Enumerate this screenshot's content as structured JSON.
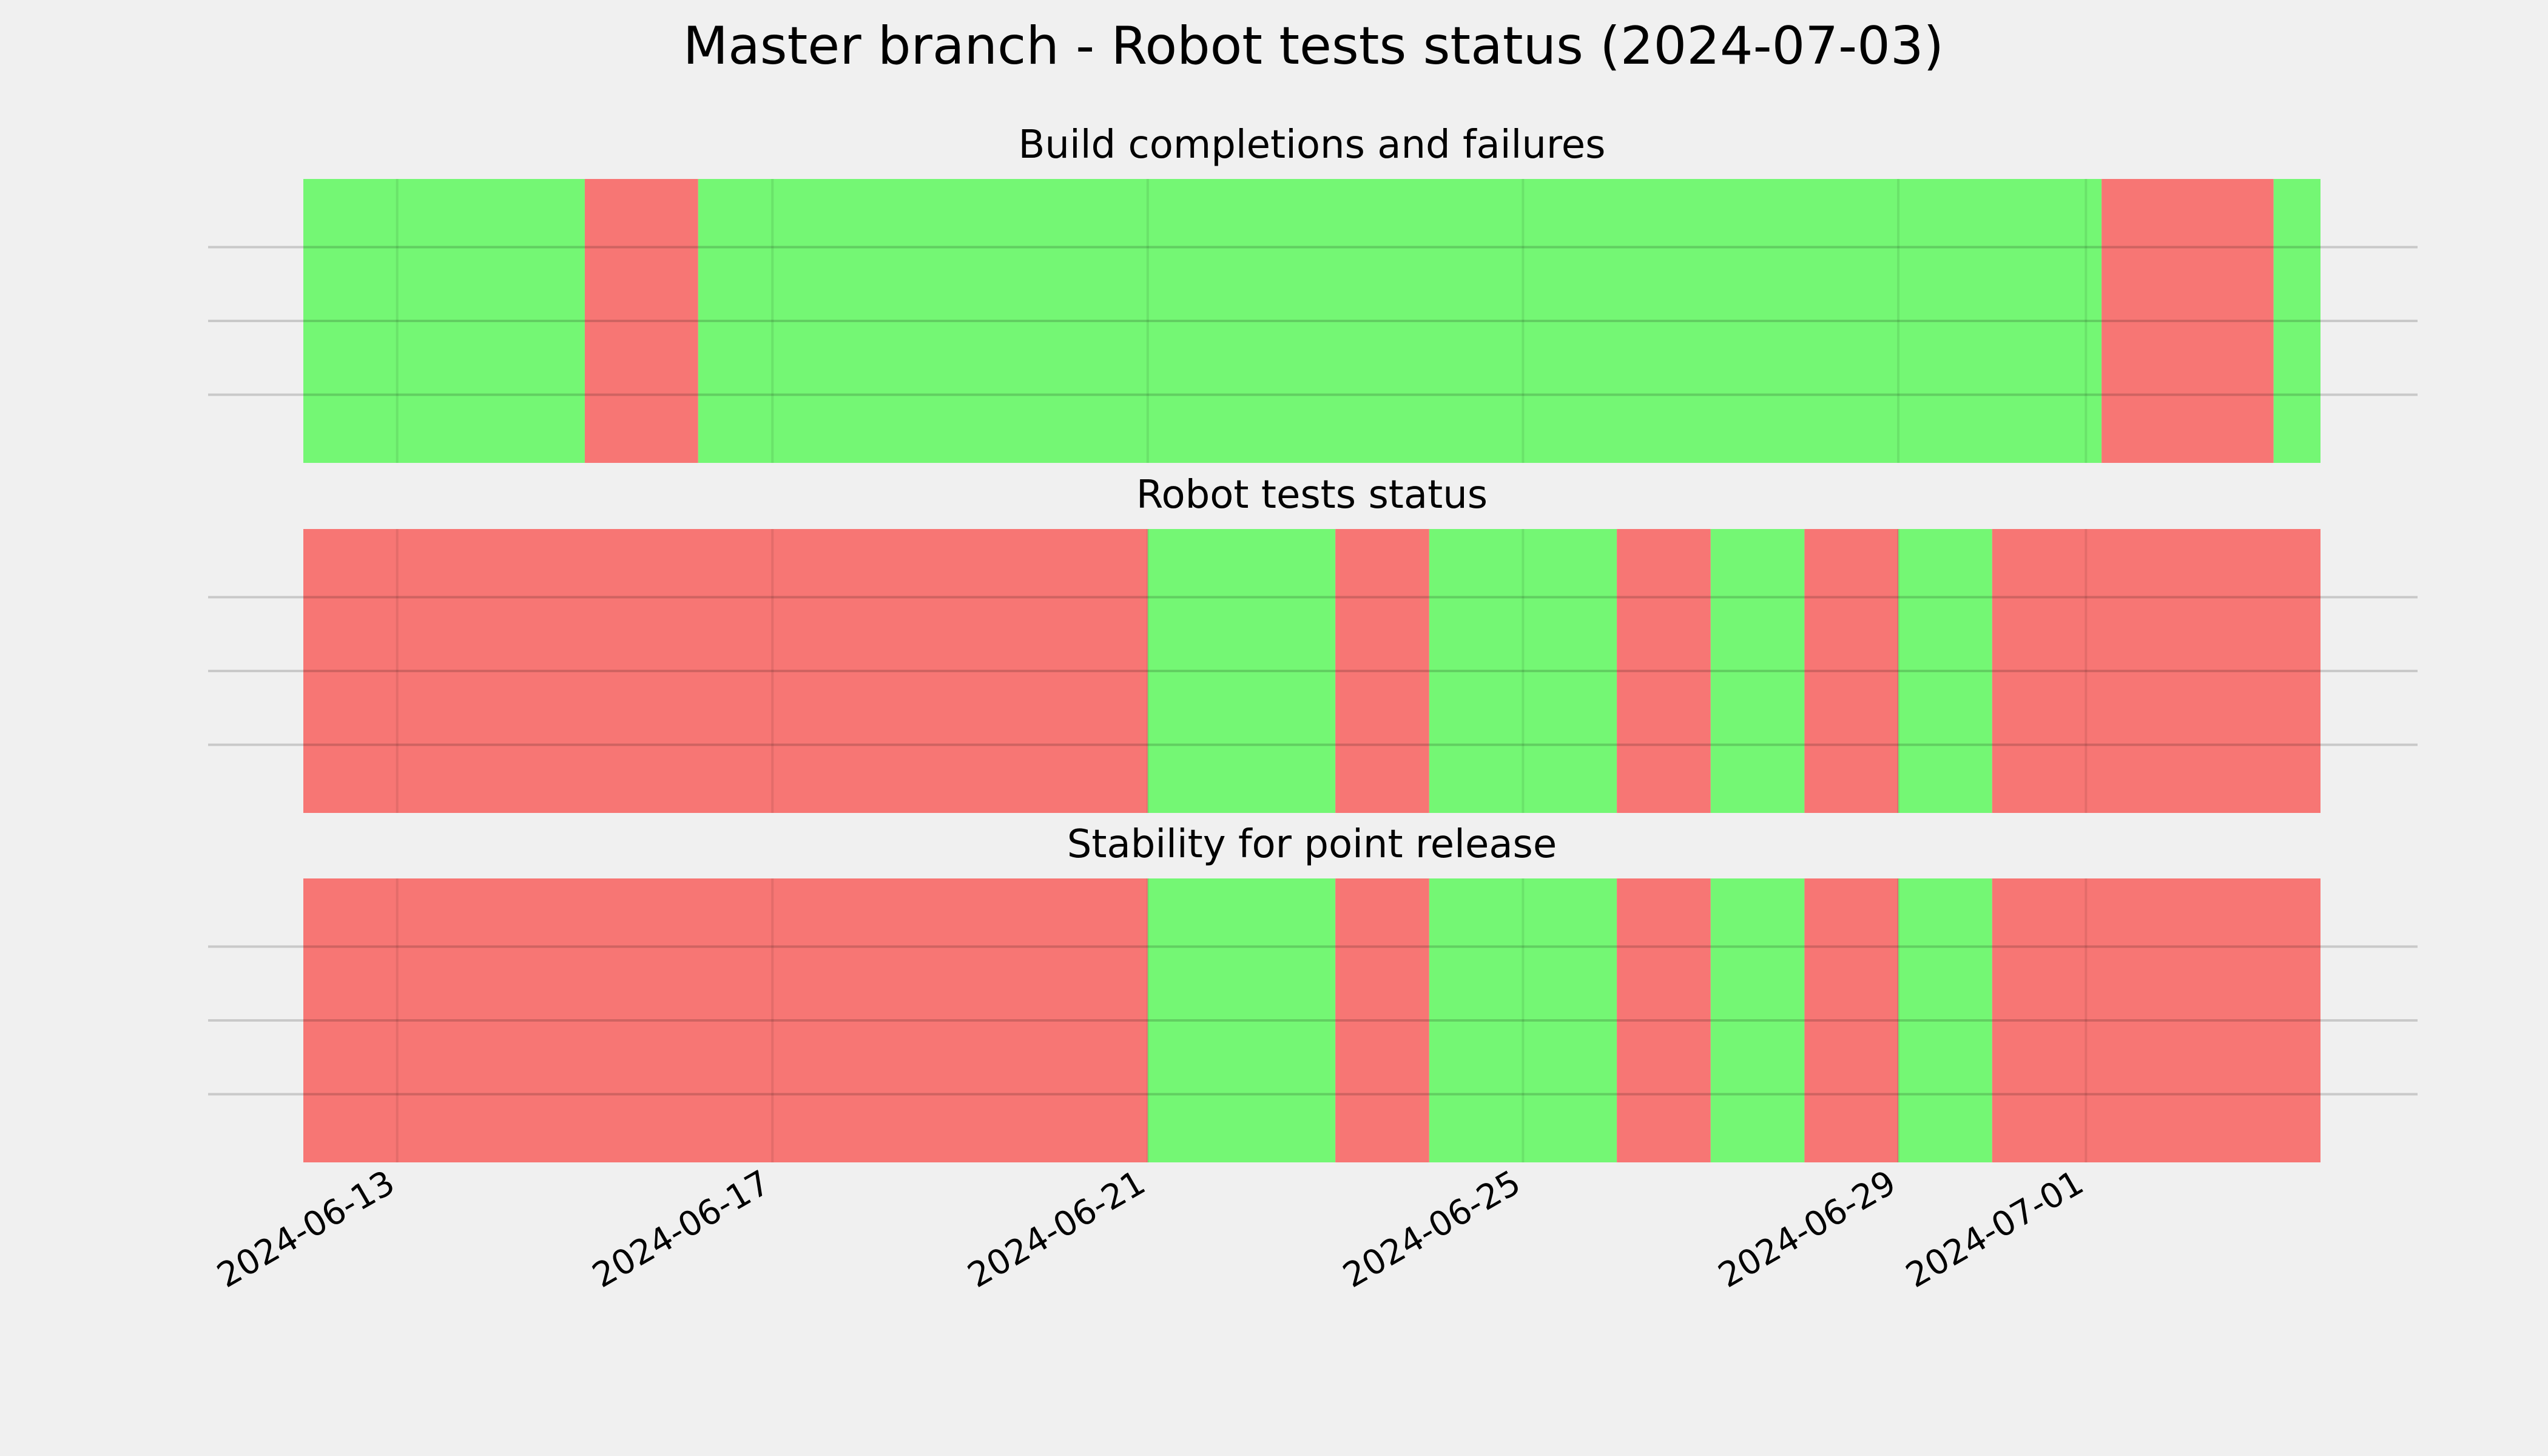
{
  "chart_data": {
    "type": "timeline",
    "title": "Master branch - Robot tests status (2024-07-03)",
    "x_range": [
      "2024-06-12T00:00",
      "2024-07-03T12:00"
    ],
    "x_ticks": [
      "2024-06-13",
      "2024-06-17",
      "2024-06-21",
      "2024-06-25",
      "2024-06-29",
      "2024-07-01"
    ],
    "colors": {
      "pass": "#74f774",
      "fail": "#f77674",
      "background": "#f0f0f0",
      "grid": "#cbcbcb"
    },
    "panels": [
      {
        "title": "Build completions and failures",
        "segments": [
          {
            "start": "2024-06-12T00:00",
            "end": "2024-06-15T00:00",
            "status": "pass"
          },
          {
            "start": "2024-06-15T00:00",
            "end": "2024-06-16T05:00",
            "status": "fail"
          },
          {
            "start": "2024-06-16T05:00",
            "end": "2024-07-01T04:00",
            "status": "pass"
          },
          {
            "start": "2024-07-01T04:00",
            "end": "2024-07-03T00:00",
            "status": "fail"
          },
          {
            "start": "2024-07-03T00:00",
            "end": "2024-07-03T12:00",
            "status": "pass"
          }
        ]
      },
      {
        "title": "Robot tests status",
        "segments": [
          {
            "start": "2024-06-12T00:00",
            "end": "2024-06-21T00:00",
            "status": "fail"
          },
          {
            "start": "2024-06-21T00:00",
            "end": "2024-06-23T00:00",
            "status": "pass"
          },
          {
            "start": "2024-06-23T00:00",
            "end": "2024-06-24T00:00",
            "status": "fail"
          },
          {
            "start": "2024-06-24T00:00",
            "end": "2024-06-26T00:00",
            "status": "pass"
          },
          {
            "start": "2024-06-26T00:00",
            "end": "2024-06-27T00:00",
            "status": "fail"
          },
          {
            "start": "2024-06-27T00:00",
            "end": "2024-06-28T00:00",
            "status": "pass"
          },
          {
            "start": "2024-06-28T00:00",
            "end": "2024-06-29T00:00",
            "status": "fail"
          },
          {
            "start": "2024-06-29T00:00",
            "end": "2024-06-30T00:00",
            "status": "pass"
          },
          {
            "start": "2024-06-30T00:00",
            "end": "2024-07-03T12:00",
            "status": "fail"
          }
        ]
      },
      {
        "title": "Stability for point release",
        "segments": [
          {
            "start": "2024-06-12T00:00",
            "end": "2024-06-21T00:00",
            "status": "fail"
          },
          {
            "start": "2024-06-21T00:00",
            "end": "2024-06-23T00:00",
            "status": "pass"
          },
          {
            "start": "2024-06-23T00:00",
            "end": "2024-06-24T00:00",
            "status": "fail"
          },
          {
            "start": "2024-06-24T00:00",
            "end": "2024-06-26T00:00",
            "status": "pass"
          },
          {
            "start": "2024-06-26T00:00",
            "end": "2024-06-27T00:00",
            "status": "fail"
          },
          {
            "start": "2024-06-27T00:00",
            "end": "2024-06-28T00:00",
            "status": "pass"
          },
          {
            "start": "2024-06-28T00:00",
            "end": "2024-06-29T00:00",
            "status": "fail"
          },
          {
            "start": "2024-06-29T00:00",
            "end": "2024-06-30T00:00",
            "status": "pass"
          },
          {
            "start": "2024-06-30T00:00",
            "end": "2024-07-03T12:00",
            "status": "fail"
          }
        ]
      }
    ]
  }
}
